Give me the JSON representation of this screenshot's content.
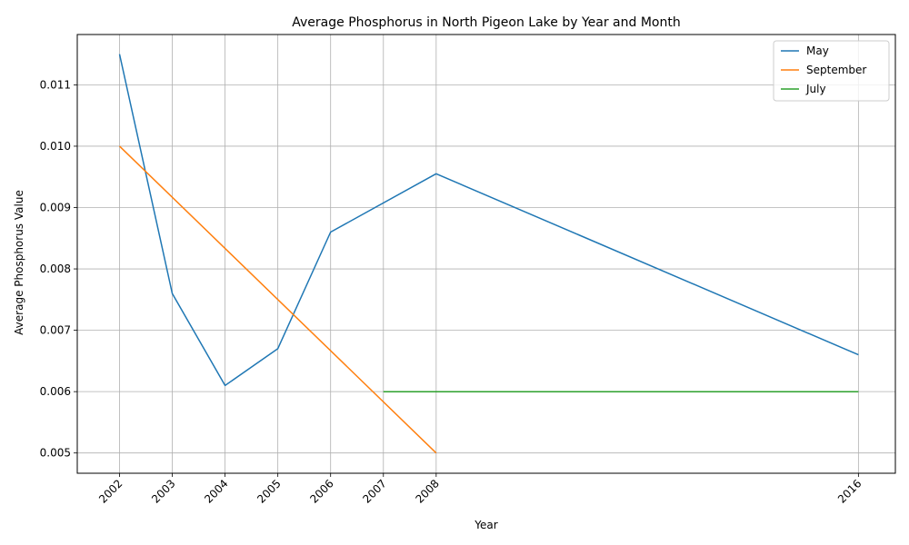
{
  "chart_data": {
    "type": "line",
    "title": "Average Phosphorus in North Pigeon Lake by Year and Month",
    "xlabel": "Year",
    "ylabel": "Average Phosphorus Value",
    "xlim": [
      2001.2,
      2016.7
    ],
    "ylim": [
      0.00467,
      0.01182
    ],
    "x_ticks": [
      2002,
      2003,
      2004,
      2005,
      2006,
      2007,
      2008,
      2016
    ],
    "y_ticks": [
      0.005,
      0.006,
      0.007,
      0.008,
      0.009,
      0.01,
      0.011
    ],
    "y_tick_labels": [
      "0.005",
      "0.006",
      "0.007",
      "0.008",
      "0.009",
      "0.010",
      "0.011"
    ],
    "grid": true,
    "legend_position": "upper right",
    "series": [
      {
        "name": "May",
        "color": "#1f77b4",
        "x": [
          2002,
          2003,
          2004,
          2005,
          2006,
          2008,
          2016
        ],
        "y": [
          0.0115,
          0.0076,
          0.0061,
          0.0067,
          0.0086,
          0.00955,
          0.0066
        ]
      },
      {
        "name": "September",
        "color": "#ff7f0e",
        "x": [
          2002,
          2008
        ],
        "y": [
          0.01,
          0.005
        ]
      },
      {
        "name": "July",
        "color": "#2ca02c",
        "x": [
          2007,
          2016
        ],
        "y": [
          0.006,
          0.006
        ]
      }
    ]
  }
}
